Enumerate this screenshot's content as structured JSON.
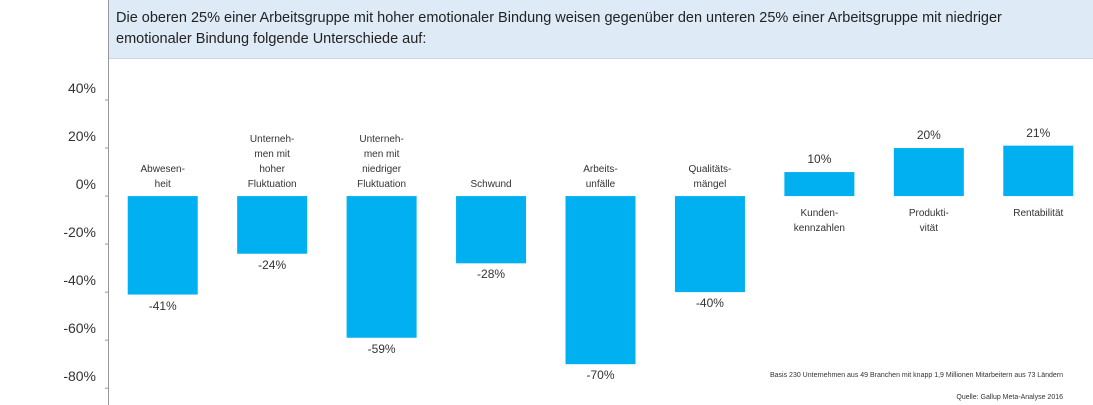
{
  "chart_data": {
    "type": "bar",
    "title": "Die oberen 25% einer Arbeitsgruppe mit hoher emotionaler Bindung weisen gegenüber den unteren 25% einer Arbeitsgruppe mit niedriger emotionaler Bindung folgende Unterschiede auf:",
    "categories": [
      "Abwesen-\nheit",
      "Unterneh-\nmen mit\nhoher\nFluktuation",
      "Unterneh-\nmen mit\nniedriger\nFluktuation",
      "Schwund",
      "Arbeits-\nunfälle",
      "Qualitäts-\nmängel",
      "Kunden-\nkennzahlen",
      "Produkti-\nvität",
      "Rentabilität"
    ],
    "values": [
      -41,
      -24,
      -59,
      -28,
      -70,
      -40,
      10,
      20,
      21
    ],
    "value_labels": [
      "-41%",
      "-24%",
      "-59%",
      "-28%",
      "-70%",
      "-40%",
      "10%",
      "20%",
      "21%"
    ],
    "color": "#00b0f0",
    "ylim": [
      -87,
      55
    ],
    "yticks": [
      {
        "value": 40,
        "label": "40%"
      },
      {
        "value": 20,
        "label": "20%"
      },
      {
        "value": 0,
        "label": "0%"
      },
      {
        "value": -20,
        "label": "-20%"
      },
      {
        "value": -40,
        "label": "-40%"
      },
      {
        "value": -60,
        "label": "-60%"
      },
      {
        "value": -80,
        "label": "-80%"
      }
    ],
    "notes": [
      "Basis 230 Unternehmen aus 49 Branchen mit knapp 1,9 Millionen Mitarbeitern aus 73 Ländern",
      "Quelle: Gallup Meta-Analyse 2016"
    ]
  }
}
